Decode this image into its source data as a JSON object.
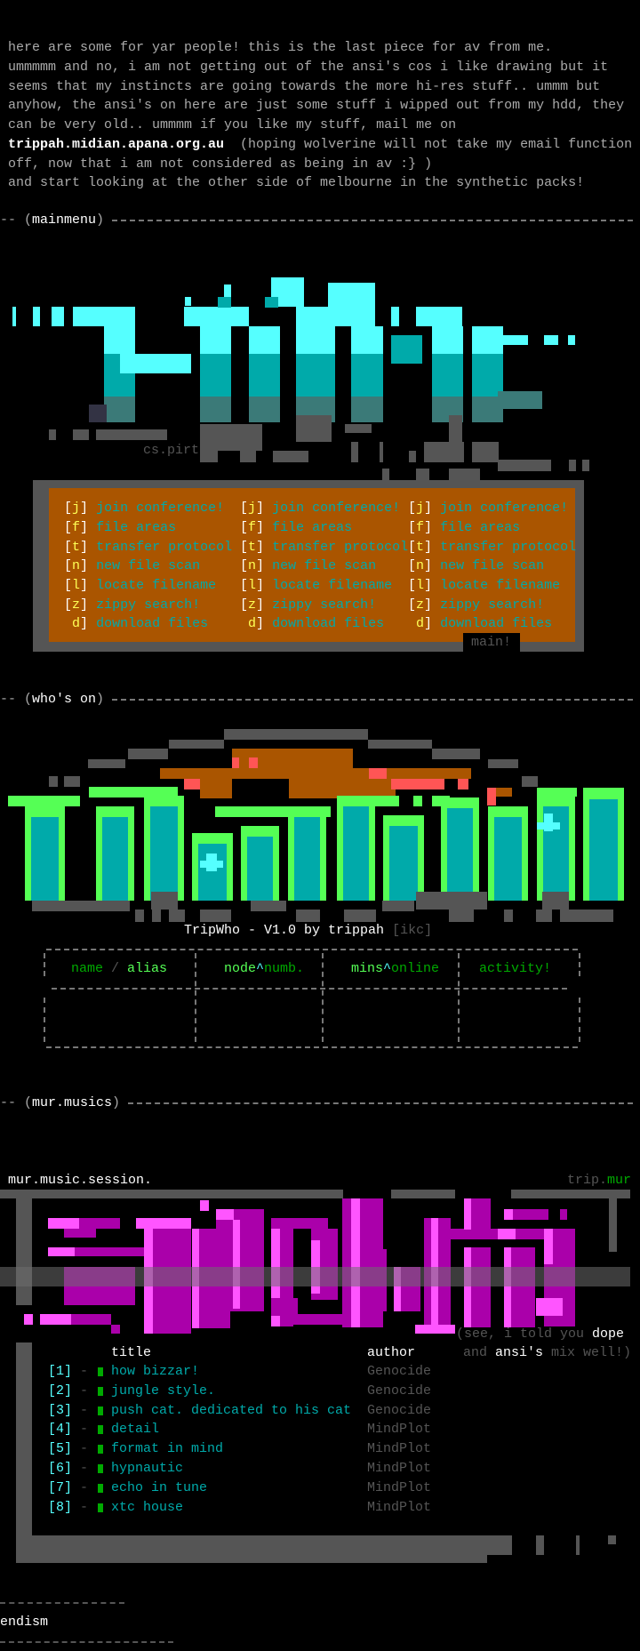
{
  "intro": {
    "lines": [
      "here are some for yar people! this is the last piece for av from me.",
      "ummmmm and no, i am not getting out of the ansi's cos i like drawing but it",
      "seems that my instincts are going towards the more hi-res stuff.. ummm but",
      "anyhow, the ansi's on here are just some stuff i wipped out from my hdd, they",
      "can be very old.. ummmm if you like my stuff, mail me on"
    ],
    "email": "trippah.midian.apana.org.au",
    "email_note": "  (hoping wolverine will not take my email function",
    "line7": "off, now that i am not considered as being in av :} )",
    "line8": "and start looking at the other side of melbourne in the synthetic packs!"
  },
  "sections": {
    "mainmenu": "mainmenu",
    "whos_on": "who's on",
    "mur_musics": "mur.musics"
  },
  "logo1": {
    "signature": "cs.pirt",
    "colors": {
      "bright": "#55ffff",
      "mid": "#00aaaa",
      "shade": "#555555"
    }
  },
  "menu": {
    "bg_color": "#aa5500",
    "columns": [
      [
        {
          "open": "[",
          "key": "j",
          "label": "join conference!"
        },
        {
          "open": "[",
          "key": "f",
          "label": "file areas"
        },
        {
          "open": "[",
          "key": "t",
          "label": "transfer protocol"
        },
        {
          "open": "[",
          "key": "n",
          "label": "new file scan"
        },
        {
          "open": "[",
          "key": "l",
          "label": "locate filename"
        },
        {
          "open": "[",
          "key": "z",
          "label": "zippy search!"
        },
        {
          "open": " ",
          "key": "d",
          "label": "download files"
        }
      ],
      [
        {
          "open": "[",
          "key": "j",
          "label": "join conference!"
        },
        {
          "open": "[",
          "key": "f",
          "label": "file areas"
        },
        {
          "open": "[",
          "key": "t",
          "label": "transfer protocol"
        },
        {
          "open": "[",
          "key": "n",
          "label": "new file scan"
        },
        {
          "open": "[",
          "key": "l",
          "label": "locate filename"
        },
        {
          "open": "[",
          "key": "z",
          "label": "zippy search!"
        },
        {
          "open": " ",
          "key": "d",
          "label": "download files"
        }
      ],
      [
        {
          "open": "[",
          "key": "j",
          "label": "join conference!"
        },
        {
          "open": "[",
          "key": "f",
          "label": "file areas"
        },
        {
          "open": "[",
          "key": "t",
          "label": "transfer protocol"
        },
        {
          "open": "[",
          "key": "n",
          "label": "new file scan"
        },
        {
          "open": "[",
          "key": "l",
          "label": "locate filename"
        },
        {
          "open": "[",
          "key": "z",
          "label": "zippy search!"
        },
        {
          "open": " ",
          "key": "d",
          "label": "download files"
        }
      ]
    ],
    "tag": "main!"
  },
  "tripwho": {
    "title": "TripWho - V1.0 by trippah",
    "group": "[ikc]",
    "headers": [
      {
        "a": "name",
        "sep": " / ",
        "b": "alias"
      },
      {
        "a": "node",
        "sep": "^",
        "b": "numb."
      },
      {
        "a": "mins",
        "sep": "^",
        "b": "online"
      },
      {
        "a": "activity!",
        "sep": "",
        "b": ""
      }
    ]
  },
  "music": {
    "left_label": "mur.music.session.",
    "right_label_a": "trip.",
    "right_label_b": "mur",
    "note1_a": "(see, i told you ",
    "note1_b": "dope",
    "note2_a": "and ",
    "note2_b": "ansi's",
    "note2_c": " mix well!)",
    "col_title": "title",
    "col_author": "author",
    "tracks": [
      {
        "num": "[1]",
        "title": "how bizzar!",
        "author": "Genocide"
      },
      {
        "num": "[2]",
        "title": "jungle style.",
        "author": "Genocide"
      },
      {
        "num": "[3]",
        "title": "push cat. dedicated to his cat",
        "author": "Genocide"
      },
      {
        "num": "[4]",
        "title": "detail",
        "author": "MindPlot"
      },
      {
        "num": "[5]",
        "title": "format in mind",
        "author": "MindPlot"
      },
      {
        "num": "[6]",
        "title": "hypnautic",
        "author": "MindPlot"
      },
      {
        "num": "[7]",
        "title": "echo in tune",
        "author": "MindPlot"
      },
      {
        "num": "[8]",
        "title": "xtc house",
        "author": "MindPlot"
      }
    ],
    "dash": "-",
    "colors": {
      "bright": "#ff55ff",
      "mid": "#aa00aa"
    }
  },
  "footer": {
    "label": "endism"
  }
}
